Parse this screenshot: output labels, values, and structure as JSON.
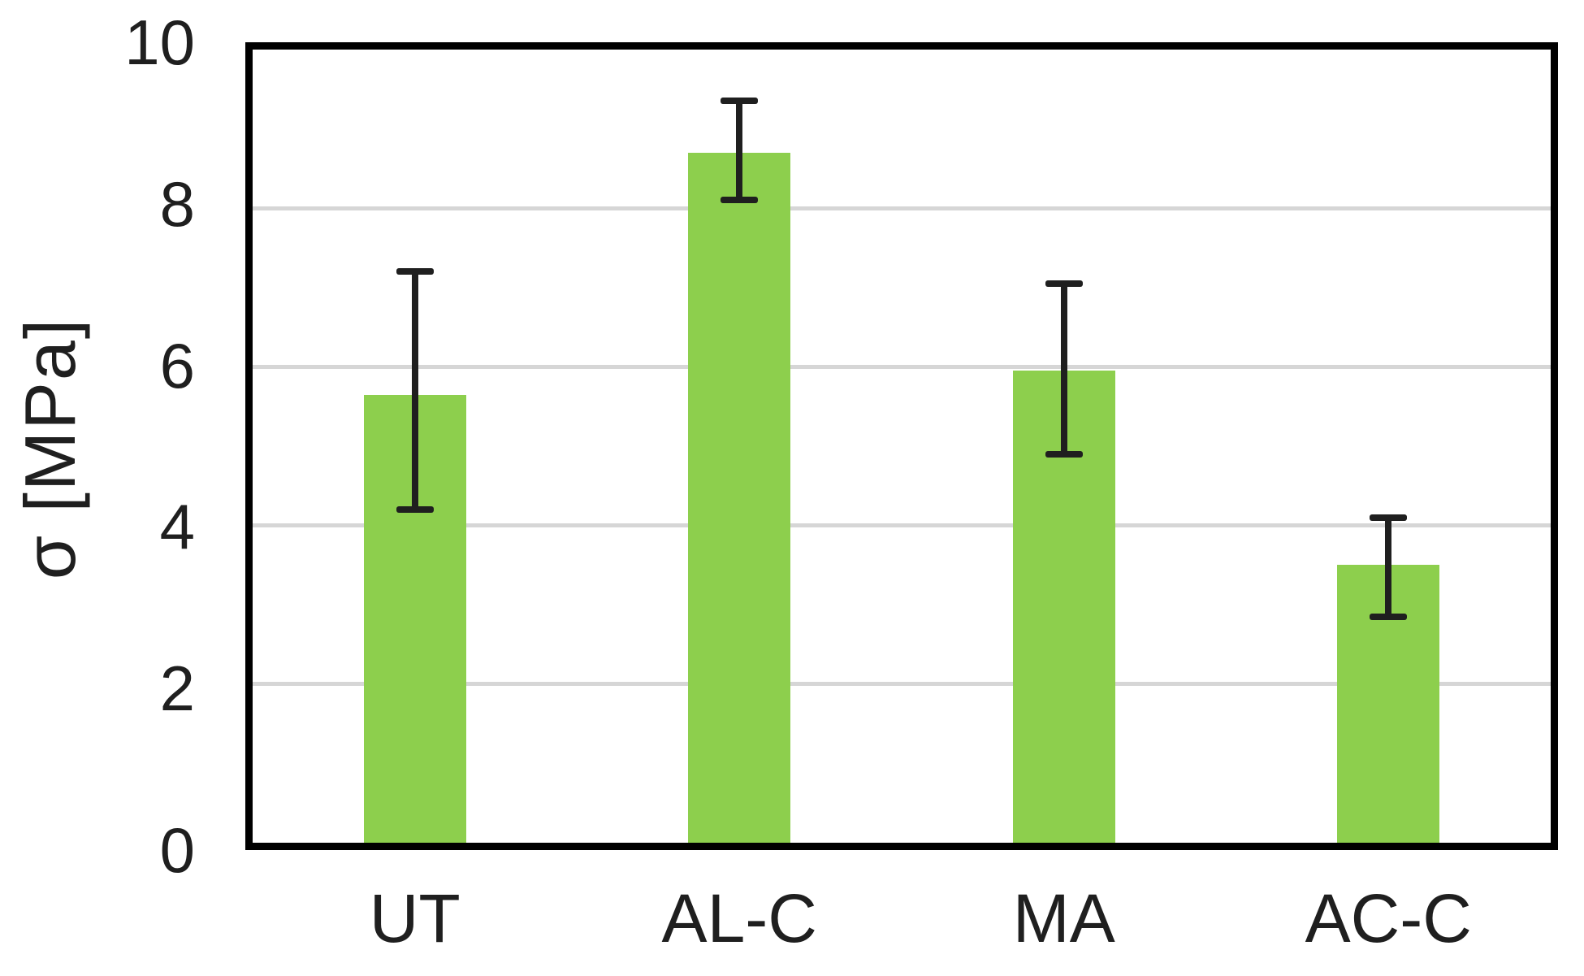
{
  "chart_data": {
    "type": "bar",
    "categories": [
      "UT",
      "AL-C",
      "MA",
      "AC-C"
    ],
    "values": [
      5.65,
      8.7,
      5.95,
      3.5
    ],
    "error_high": [
      7.2,
      9.35,
      7.05,
      4.1
    ],
    "error_low": [
      4.2,
      8.1,
      4.9,
      2.85
    ],
    "title": "",
    "xlabel": "",
    "ylabel": "σ [MPa]",
    "ylim": [
      0,
      10
    ],
    "yticks": [
      0,
      2,
      4,
      6,
      8,
      10
    ],
    "grid": "horizontal major gridlines only",
    "legend": "none",
    "bar_color": "#8DCF4D",
    "error_bar_color": "#1f1f1f",
    "gridline_color": "#d6d6d6",
    "axis_border_color": "#000000",
    "text_color": "#1f1f1f"
  }
}
